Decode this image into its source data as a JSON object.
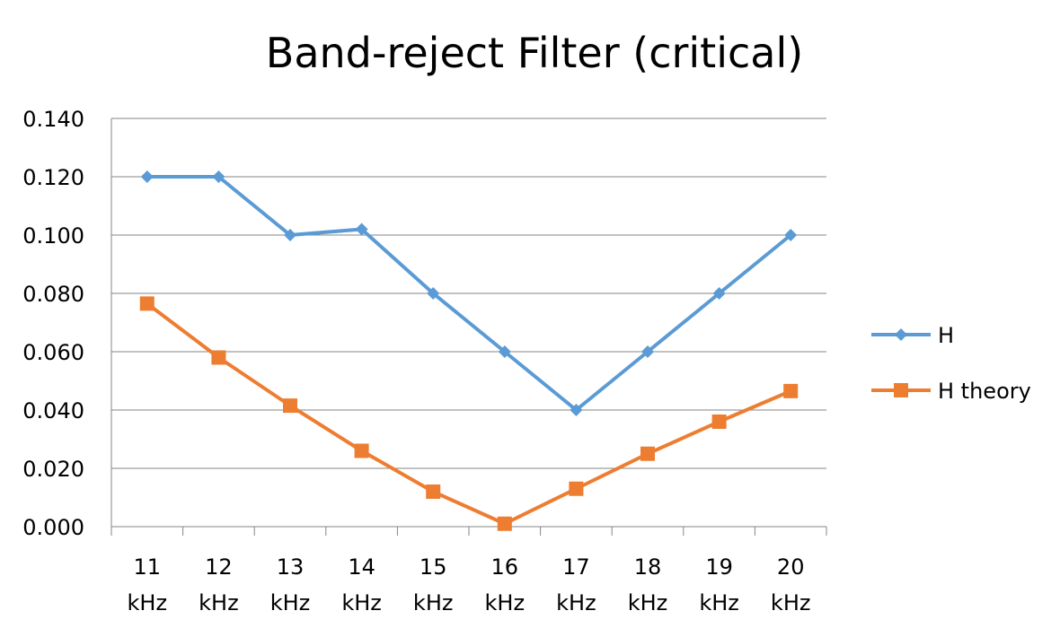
{
  "chart_data": {
    "type": "line",
    "title": "Band-reject Filter (critical)",
    "xlabel": "",
    "ylabel": "",
    "categories": [
      [
        "11",
        "kHz"
      ],
      [
        "12",
        "kHz"
      ],
      [
        "13",
        "kHz"
      ],
      [
        "14",
        "kHz"
      ],
      [
        "15",
        "kHz"
      ],
      [
        "16",
        "kHz"
      ],
      [
        "17",
        "kHz"
      ],
      [
        "18",
        "kHz"
      ],
      [
        "19",
        "kHz"
      ],
      [
        "20",
        "kHz"
      ]
    ],
    "ylim": [
      0,
      0.14
    ],
    "yticks": [
      "0.000",
      "0.020",
      "0.040",
      "0.060",
      "0.080",
      "0.100",
      "0.120",
      "0.140"
    ],
    "grid": "horizontal",
    "legend_position": "right",
    "series": [
      {
        "name": "H",
        "color": "#5B9BD5",
        "marker": "diamond",
        "values": [
          0.12,
          0.12,
          0.1,
          0.102,
          0.08,
          0.06,
          0.04,
          0.06,
          0.08,
          0.1
        ]
      },
      {
        "name": "H theory",
        "color": "#ED7D31",
        "marker": "square",
        "values": [
          0.0765,
          0.058,
          0.0415,
          0.026,
          0.012,
          0.001,
          0.013,
          0.025,
          0.036,
          0.0465
        ]
      }
    ]
  }
}
